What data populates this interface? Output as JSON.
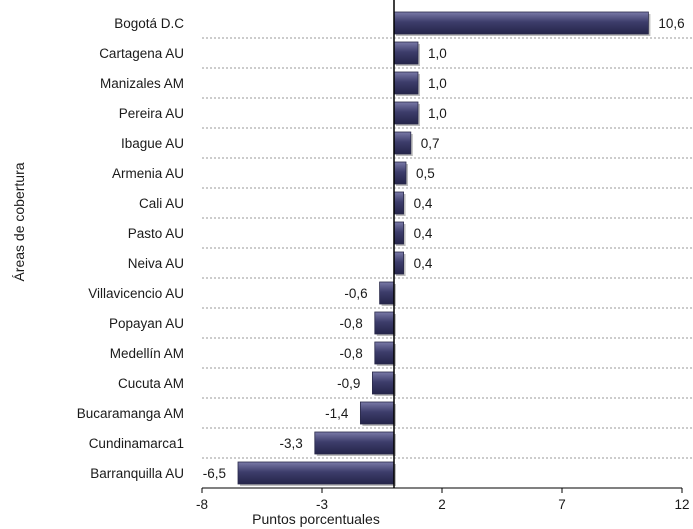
{
  "chart_data": {
    "type": "bar",
    "orientation": "horizontal",
    "categories": [
      "Bogotá D.C",
      "Cartagena AU",
      "Manizales AM",
      "Pereira AU",
      "Ibague AU",
      "Armenia AU",
      "Cali AU",
      "Pasto AU",
      "Neiva AU",
      "Villavicencio AU",
      "Popayan AU",
      "Medellín AM",
      "Cucuta AM",
      "Bucaramanga AM",
      "Cundinamarca1",
      "Barranquilla AU"
    ],
    "values": [
      10.6,
      1.0,
      1.0,
      1.0,
      0.7,
      0.5,
      0.4,
      0.4,
      0.4,
      -0.6,
      -0.8,
      -0.8,
      -0.9,
      -1.4,
      -3.3,
      -6.5
    ],
    "value_labels": [
      "10,6",
      "1,0",
      "1,0",
      "1,0",
      "0,7",
      "0,5",
      "0,4",
      "0,4",
      "0,4",
      "-0,6",
      "-0,8",
      "-0,8",
      "-0,9",
      "-1,4",
      "-3,3",
      "-6,5"
    ],
    "xlabel": "Puntos porcentuales",
    "ylabel": "Áreas de cobertura",
    "xlim": [
      -8,
      12
    ],
    "xticks": [
      -8,
      -3,
      2,
      7,
      12
    ],
    "bar_color": "#3d3d6b",
    "grid": true
  }
}
